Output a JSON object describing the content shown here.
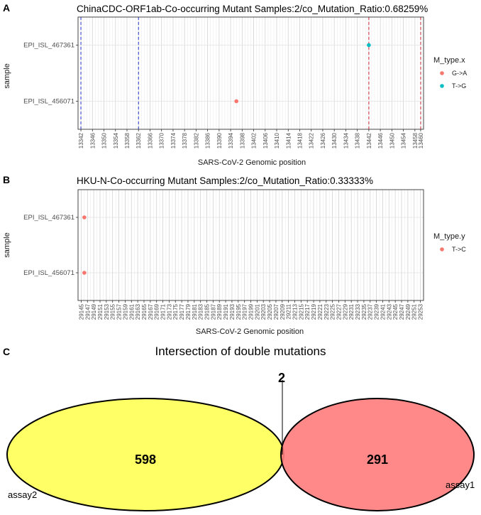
{
  "panels": {
    "a": {
      "letter": "A",
      "chart_data": {
        "type": "scatter",
        "title": "ChinaCDC-ORF1ab-Co-occurring Mutant Samples:2/co_Mutation_Ratio:0.68259%",
        "xlabel": "SARS-CoV-2 Genomic position",
        "ylabel": "sample",
        "xlim": [
          13341,
          13461
        ],
        "xticks": [
          "13342",
          "13346",
          "13350",
          "13354",
          "13358",
          "13362",
          "13366",
          "13370",
          "13374",
          "13378",
          "13382",
          "13386",
          "13390",
          "13394",
          "13398",
          "13402",
          "13406",
          "13410",
          "13414",
          "13418",
          "13422",
          "13426",
          "13430",
          "13434",
          "13438",
          "13442",
          "13446",
          "13450",
          "13454",
          "13458",
          "13460"
        ],
        "categories": [
          "EPI_ISL_456071",
          "EPI_ISL_467361"
        ],
        "legend": {
          "title": "M_type.x",
          "position": "right"
        },
        "series": [
          {
            "name": "G->A",
            "color": "#F8766D",
            "points": [
              {
                "x": 13396,
                "y": "EPI_ISL_456071"
              }
            ]
          },
          {
            "name": "T->G",
            "color": "#00BFC4",
            "points": [
              {
                "x": 13442,
                "y": "EPI_ISL_467361"
              }
            ]
          }
        ],
        "vlines": [
          {
            "x": 13342,
            "color": "#2233cc"
          },
          {
            "x": 13362,
            "color": "#2233cc"
          },
          {
            "x": 13442,
            "color": "#cc2233"
          },
          {
            "x": 13460,
            "color": "#cc2233"
          }
        ]
      }
    },
    "b": {
      "letter": "B",
      "chart_data": {
        "type": "scatter",
        "title": "HKU-N-Co-occurring Mutant Samples:2/co_Mutation_Ratio:0.33333%",
        "xlabel": "SARS-CoV-2 Genomic position",
        "ylabel": "sample",
        "xlim": [
          29144,
          29254
        ],
        "xticks": [
          "29145",
          "29147",
          "29149",
          "29151",
          "29153",
          "29155",
          "29157",
          "29159",
          "29161",
          "29163",
          "29165",
          "29167",
          "29169",
          "29171",
          "29173",
          "29175",
          "29177",
          "29179",
          "29181",
          "29183",
          "29185",
          "29187",
          "29189",
          "29191",
          "29193",
          "29195",
          "29197",
          "29199",
          "29201",
          "29203",
          "29205",
          "29207",
          "29209",
          "29211",
          "29213",
          "29215",
          "29217",
          "29219",
          "29221",
          "29223",
          "29225",
          "29227",
          "29229",
          "29231",
          "29233",
          "29235",
          "29237",
          "29239",
          "29241",
          "29243",
          "29245",
          "29247",
          "29249",
          "29251",
          "29253"
        ],
        "categories": [
          "EPI_ISL_456071",
          "EPI_ISL_467361"
        ],
        "legend": {
          "title": "M_type.y",
          "position": "right"
        },
        "series": [
          {
            "name": "T->C",
            "color": "#F8766D",
            "points": [
              {
                "x": 29146,
                "y": "EPI_ISL_456071"
              },
              {
                "x": 29146,
                "y": "EPI_ISL_467361"
              }
            ]
          }
        ]
      }
    },
    "c": {
      "letter": "C",
      "chart_data": {
        "type": "venn",
        "title": "Intersection of double mutations",
        "sets": [
          {
            "name": "assay2",
            "only": 598,
            "color": "#FFFF66"
          },
          {
            "name": "assay1",
            "only": 291,
            "color": "#FF7F7F"
          }
        ],
        "intersection": 2
      }
    }
  }
}
